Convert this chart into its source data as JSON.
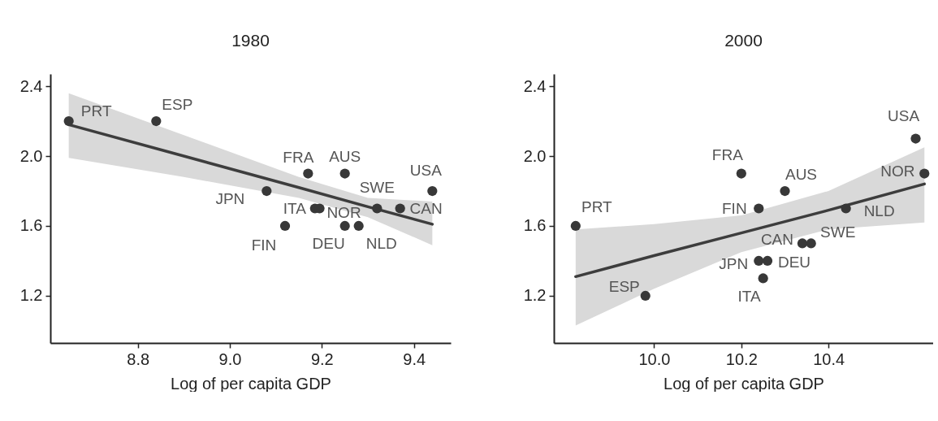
{
  "chart_data": [
    {
      "type": "scatter",
      "title": "1980",
      "xlabel": "Log of per capita GDP",
      "xlim": [
        8.61,
        9.48
      ],
      "xticks": [
        8.8,
        {
          "value": 9,
          "label": "9.0"
        },
        9.2,
        9.4
      ],
      "ylim": [
        0.93,
        2.47
      ],
      "yticks": [
        1.2,
        1.6,
        {
          "value": 2,
          "label": "2.0"
        },
        2.4
      ],
      "grid": false,
      "legend": false,
      "series": [
        {
          "type": "line",
          "color": "#3d3d3d",
          "x": [
            8.65,
            8.9,
            9.15,
            9.3,
            9.44
          ],
          "values": [
            2.18,
            2.0,
            1.82,
            1.71,
            1.61
          ],
          "lower": [
            1.99,
            1.88,
            1.76,
            1.65,
            1.49
          ],
          "upper": [
            2.36,
            2.12,
            1.88,
            1.76,
            1.74
          ]
        },
        {
          "type": "scatter",
          "marker": "circle",
          "color": "#383838",
          "x": [
            8.65,
            8.84,
            9.17,
            9.25,
            9.08,
            9.185,
            9.195,
            9.32,
            9.37,
            9.44,
            9.12,
            9.25,
            9.28
          ],
          "values": [
            2.2,
            2.2,
            1.9,
            1.9,
            1.8,
            1.7,
            1.7,
            1.7,
            1.7,
            1.8,
            1.6,
            1.6,
            1.6
          ]
        }
      ],
      "annotations": [
        {
          "text": "PRT",
          "x": 8.65,
          "y": 2.2
        },
        {
          "text": "ESP",
          "x": 8.84,
          "y": 2.2
        },
        {
          "text": "FRA",
          "x": 9.17,
          "y": 1.9
        },
        {
          "text": "AUS",
          "x": 9.25,
          "y": 1.9
        },
        {
          "text": "JPN",
          "x": 9.08,
          "y": 1.8
        },
        {
          "text": "ITA",
          "x": 9.185,
          "y": 1.7
        },
        {
          "text": "NOR",
          "x": 9.195,
          "y": 1.7
        },
        {
          "text": "SWE",
          "x": 9.32,
          "y": 1.7
        },
        {
          "text": "CAN",
          "x": 9.37,
          "y": 1.7
        },
        {
          "text": "USA",
          "x": 9.44,
          "y": 1.8
        },
        {
          "text": "FIN",
          "x": 9.12,
          "y": 1.6
        },
        {
          "text": "DEU",
          "x": 9.25,
          "y": 1.6
        },
        {
          "text": "NLD",
          "x": 9.28,
          "y": 1.6
        }
      ]
    },
    {
      "type": "scatter",
      "title": "2000",
      "xlabel": "Log of per capita GDP",
      "xlim": [
        9.77,
        10.64
      ],
      "xticks": [
        {
          "value": 10,
          "label": "10.0"
        },
        10.2,
        10.4
      ],
      "ylim": [
        0.93,
        2.47
      ],
      "yticks": [
        1.2,
        1.6,
        {
          "value": 2,
          "label": "2.0"
        },
        2.4
      ],
      "grid": false,
      "legend": false,
      "series": [
        {
          "type": "line",
          "color": "#3d3d3d",
          "x": [
            9.82,
            10.0,
            10.2,
            10.4,
            10.62
          ],
          "values": [
            1.31,
            1.43,
            1.56,
            1.69,
            1.84
          ],
          "lower": [
            1.03,
            1.24,
            1.45,
            1.58,
            1.62
          ],
          "upper": [
            1.58,
            1.61,
            1.66,
            1.8,
            2.05
          ]
        },
        {
          "type": "scatter",
          "marker": "circle",
          "color": "#383838",
          "x": [
            9.82,
            9.98,
            10.2,
            10.3,
            10.24,
            10.25,
            10.62,
            10.36,
            10.34,
            10.6,
            10.24,
            10.26,
            10.44
          ],
          "values": [
            1.6,
            1.2,
            1.9,
            1.8,
            1.4,
            1.3,
            1.9,
            1.5,
            1.5,
            2.1,
            1.7,
            1.4,
            1.7
          ]
        }
      ],
      "annotations": [
        {
          "text": "PRT",
          "x": 9.82,
          "y": 1.6
        },
        {
          "text": "ESP",
          "x": 9.98,
          "y": 1.2
        },
        {
          "text": "FRA",
          "x": 10.2,
          "y": 1.9
        },
        {
          "text": "AUS",
          "x": 10.3,
          "y": 1.8
        },
        {
          "text": "JPN",
          "x": 10.24,
          "y": 1.4
        },
        {
          "text": "ITA",
          "x": 10.25,
          "y": 1.3
        },
        {
          "text": "NOR",
          "x": 10.62,
          "y": 1.9
        },
        {
          "text": "SWE",
          "x": 10.36,
          "y": 1.5
        },
        {
          "text": "CAN",
          "x": 10.34,
          "y": 1.5
        },
        {
          "text": "USA",
          "x": 10.6,
          "y": 2.1
        },
        {
          "text": "FIN",
          "x": 10.24,
          "y": 1.7
        },
        {
          "text": "DEU",
          "x": 10.26,
          "y": 1.4
        },
        {
          "text": "NLD",
          "x": 10.44,
          "y": 1.7
        }
      ]
    }
  ]
}
